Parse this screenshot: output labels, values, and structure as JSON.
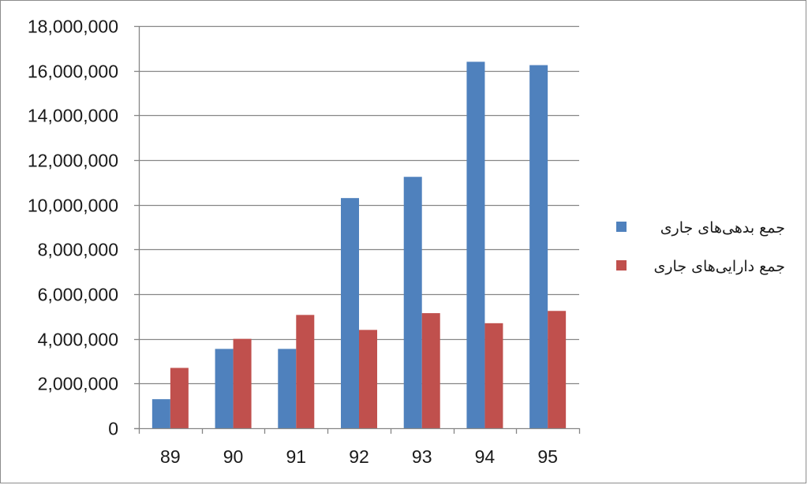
{
  "chart_data": {
    "type": "bar",
    "categories": [
      "89",
      "90",
      "91",
      "92",
      "93",
      "94",
      "95"
    ],
    "series": [
      {
        "name": "جمع بدهی‌های جاری",
        "color": "#4f81bd",
        "values": [
          1300000,
          3550000,
          3550000,
          10300000,
          11250000,
          16400000,
          16250000
        ]
      },
      {
        "name": "جمع دارایی‌های جاری",
        "color": "#c0504d",
        "values": [
          2700000,
          4000000,
          5070000,
          4400000,
          5150000,
          4700000,
          5250000
        ]
      }
    ],
    "ylim": [
      0,
      18000000
    ],
    "yticks": [
      0,
      2000000,
      4000000,
      6000000,
      8000000,
      10000000,
      12000000,
      14000000,
      16000000,
      18000000
    ],
    "ytick_labels": [
      "0",
      "2,000,000",
      "4,000,000",
      "6,000,000",
      "8,000,000",
      "10,000,000",
      "12,000,000",
      "14,000,000",
      "16,000,000",
      "18,000,000"
    ],
    "grid": true,
    "legend": "right",
    "title": "",
    "xlabel": "",
    "ylabel": ""
  }
}
